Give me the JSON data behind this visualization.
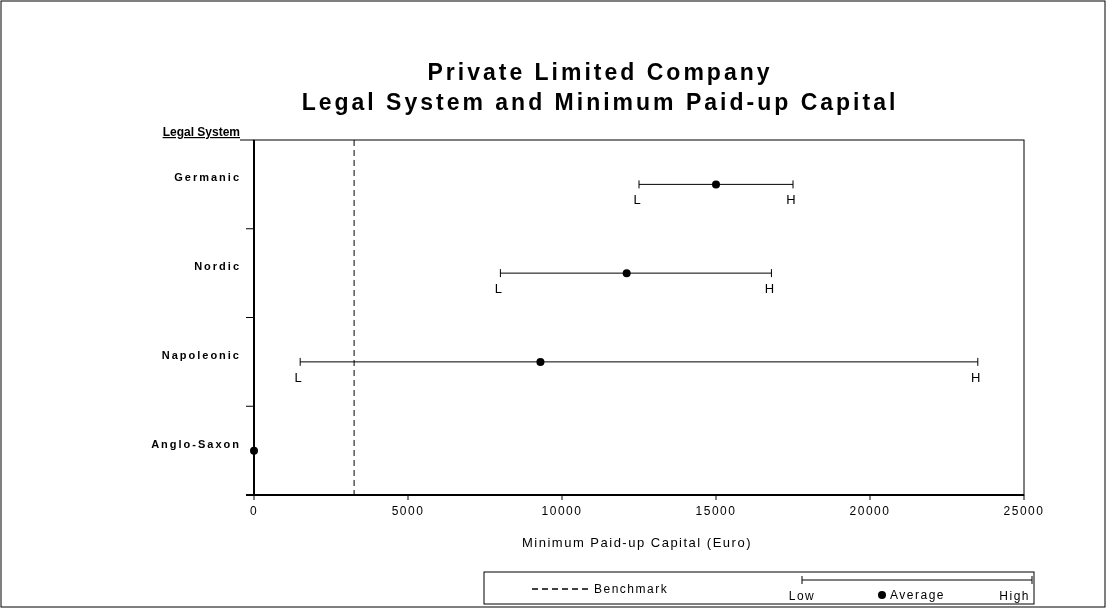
{
  "chart_data": {
    "type": "scatter",
    "orientation": "horizontal",
    "title": "Private Limited Company\nLegal System and Minimum Paid-up Capital",
    "xlabel": "Minimum Paid-up Capital (Euro)",
    "ylabel": "Legal System",
    "categories": [
      "Germanic",
      "Nordic",
      "Napoleonic",
      "Anglo-Saxon"
    ],
    "series": [
      {
        "name": "Average",
        "color": "#000000",
        "values": [
          15000,
          12100,
          9300,
          0
        ],
        "errors": [
          [
            12500,
            17500
          ],
          [
            8000,
            16800
          ],
          [
            1500,
            23500
          ],
          null
        ]
      }
    ],
    "xlim": [
      0,
      25000
    ],
    "xticks": [
      0,
      5000,
      10000,
      15000,
      20000,
      25000
    ],
    "marker": "circle",
    "grid": false,
    "legend": "bottom",
    "ref_lines": [
      {
        "axis": "x",
        "value": 3250,
        "label": "Benchmark",
        "line_style": "dashed",
        "color": "#000000"
      }
    ],
    "annotations": [
      {
        "text": "L",
        "x": 12500,
        "y": "Germanic"
      },
      {
        "text": "H",
        "x": 17500,
        "y": "Germanic"
      },
      {
        "text": "L",
        "x": 8000,
        "y": "Nordic"
      },
      {
        "text": "H",
        "x": 16800,
        "y": "Nordic"
      },
      {
        "text": "L",
        "x": 1500,
        "y": "Napoleonic"
      },
      {
        "text": "H",
        "x": 23500,
        "y": "Napoleonic"
      },
      "Low",
      "High"
    ]
  }
}
